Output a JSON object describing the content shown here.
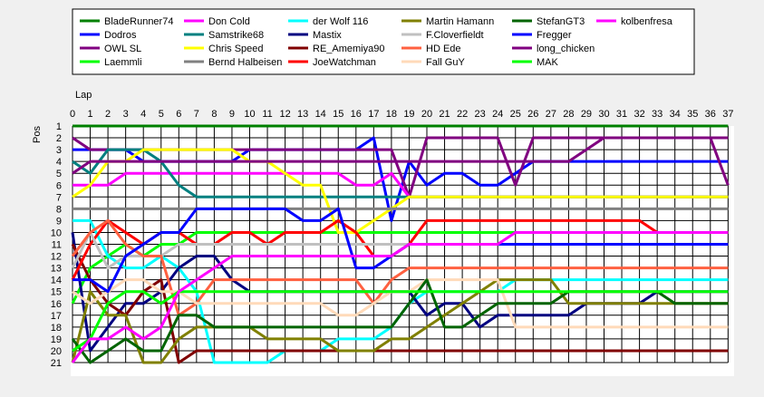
{
  "chart_data": {
    "type": "line",
    "xlabel": "Lap",
    "ylabel": "Pos",
    "x": [
      0,
      1,
      2,
      3,
      4,
      5,
      6,
      7,
      8,
      9,
      10,
      11,
      12,
      13,
      14,
      15,
      16,
      17,
      18,
      19,
      20,
      21,
      22,
      23,
      24,
      25,
      26,
      27,
      28,
      29,
      30,
      31,
      32,
      33,
      34,
      35,
      36,
      37
    ],
    "xlim": [
      0,
      37
    ],
    "ylim": [
      1,
      21
    ],
    "y_inverted": true,
    "yticks": [
      1,
      2,
      3,
      4,
      5,
      6,
      7,
      8,
      9,
      10,
      11,
      12,
      13,
      14,
      15,
      16,
      17,
      18,
      19,
      20,
      21
    ],
    "grid": true,
    "legend_position": "top",
    "series": [
      {
        "name": "BladeRunner74",
        "color": "#008000",
        "values": [
          1,
          1,
          1,
          1,
          1,
          1,
          1,
          1,
          1,
          1,
          1,
          1,
          1,
          1,
          1,
          1,
          1,
          1,
          1,
          1,
          1,
          1,
          1,
          1,
          1,
          1,
          1,
          1,
          1,
          1,
          1,
          1,
          1,
          1,
          1,
          1,
          1,
          1
        ]
      },
      {
        "name": "Dodros",
        "color": "#0000ff",
        "values": [
          3,
          3,
          3,
          3,
          4,
          4,
          4,
          4,
          4,
          4,
          3,
          3,
          3,
          3,
          3,
          3,
          3,
          2,
          9,
          4,
          6,
          5,
          5,
          6,
          6,
          5,
          4,
          4,
          4,
          4,
          4,
          4,
          4,
          4,
          4,
          4,
          4,
          4
        ]
      },
      {
        "name": "OWL SL",
        "color": "#800080",
        "values": [
          2,
          3,
          3,
          3,
          3,
          3,
          3,
          3,
          3,
          3,
          3,
          3,
          3,
          3,
          3,
          3,
          3,
          3,
          3,
          7,
          2,
          2,
          2,
          2,
          2,
          6,
          2,
          2,
          2,
          2,
          2,
          2,
          2,
          2,
          2,
          2,
          2,
          6
        ]
      },
      {
        "name": "Laemmli",
        "color": "#00ff00",
        "values": [
          16,
          13,
          12,
          11,
          12,
          11,
          11,
          10,
          10,
          10,
          10,
          10,
          10,
          10,
          10,
          10,
          10,
          10,
          10,
          10,
          10,
          10,
          10,
          10,
          10,
          10,
          10,
          10,
          10,
          10,
          10,
          10,
          10,
          10,
          10,
          10,
          10,
          10
        ]
      },
      {
        "name": "Don Cold",
        "color": "#ff00ff",
        "values": [
          6,
          6,
          6,
          5,
          5,
          5,
          5,
          5,
          5,
          5,
          5,
          5,
          5,
          5,
          5,
          5,
          6,
          6,
          5,
          7,
          7,
          7,
          7,
          7,
          7,
          7,
          7,
          7,
          7,
          7,
          7,
          7,
          7,
          7,
          7,
          7,
          7,
          7
        ]
      },
      {
        "name": "Samstrike68",
        "color": "#008080",
        "values": [
          4,
          5,
          3,
          3,
          3,
          4,
          6,
          7,
          7,
          7,
          7,
          7,
          7,
          7,
          7,
          7,
          7,
          7,
          7,
          7,
          7,
          7,
          7,
          7,
          7,
          7,
          7,
          7,
          7,
          7,
          7,
          7,
          7,
          7,
          7,
          7,
          7,
          7
        ]
      },
      {
        "name": "Chris Speed",
        "color": "#ffff00",
        "values": [
          7,
          6,
          4,
          4,
          3,
          3,
          3,
          3,
          3,
          3,
          4,
          4,
          5,
          6,
          6,
          10,
          10,
          9,
          8,
          7,
          7,
          7,
          7,
          7,
          7,
          7,
          7,
          7,
          7,
          7,
          7,
          7,
          7,
          7,
          7,
          7,
          7,
          7
        ]
      },
      {
        "name": "Bernd Halbeisen",
        "color": "#808080",
        "values": [
          8,
          8,
          8,
          8,
          8,
          8,
          8,
          8,
          8,
          8,
          8,
          8,
          8,
          8,
          8,
          8,
          8,
          8,
          8,
          8,
          8,
          8,
          8,
          8,
          8,
          8,
          8,
          8,
          8,
          8,
          8,
          8,
          8,
          8,
          8,
          8,
          8,
          8
        ]
      },
      {
        "name": "der Wolf 116",
        "color": "#00ffff",
        "values": [
          9,
          9,
          12,
          13,
          13,
          12,
          13,
          15,
          21,
          21,
          21,
          21,
          20,
          20,
          20,
          19,
          19,
          19,
          18,
          16,
          15,
          15,
          15,
          15,
          15,
          14,
          14,
          14,
          14,
          14,
          14,
          14,
          14,
          14,
          14,
          14,
          14,
          14
        ]
      },
      {
        "name": "Mastix",
        "color": "#000080",
        "values": [
          10,
          20,
          18,
          16,
          16,
          15,
          13,
          12,
          12,
          14,
          15,
          15,
          15,
          15,
          15,
          15,
          15,
          15,
          15,
          15,
          17,
          16,
          16,
          18,
          17,
          17,
          17,
          17,
          17,
          16,
          16,
          16,
          16,
          15,
          15,
          15,
          15,
          15
        ]
      },
      {
        "name": "RE_Amemiya90",
        "color": "#800000",
        "values": [
          11,
          14,
          16,
          17,
          15,
          14,
          21,
          20,
          20,
          20,
          20,
          20,
          20,
          20,
          20,
          20,
          20,
          20,
          20,
          20,
          20,
          20,
          20,
          20,
          20,
          20,
          20,
          20,
          20,
          20,
          20,
          20,
          20,
          20,
          20,
          20,
          20,
          20
        ]
      },
      {
        "name": "JoeWatchman",
        "color": "#ff0000",
        "values": [
          14,
          11,
          9,
          10,
          11,
          10,
          10,
          11,
          11,
          10,
          10,
          11,
          10,
          10,
          10,
          9,
          10,
          12,
          12,
          11,
          9,
          9,
          9,
          9,
          9,
          9,
          9,
          9,
          9,
          9,
          9,
          9,
          9,
          10,
          10,
          10,
          10,
          10
        ]
      },
      {
        "name": "Martin Hamann",
        "color": "#808000",
        "values": [
          21,
          15,
          17,
          17,
          21,
          21,
          19,
          18,
          18,
          18,
          18,
          19,
          19,
          19,
          19,
          20,
          20,
          20,
          19,
          19,
          18,
          17,
          16,
          15,
          14,
          14,
          14,
          14,
          16,
          16,
          16,
          16,
          16,
          16,
          16,
          16,
          16,
          16
        ]
      },
      {
        "name": "F.Cloverfieldt",
        "color": "#c0c0c0",
        "values": [
          13,
          10,
          13,
          12,
          12,
          12,
          11,
          11,
          11,
          11,
          11,
          11,
          11,
          11,
          11,
          11,
          11,
          11,
          11,
          11,
          11,
          11,
          11,
          11,
          11,
          11,
          11,
          11,
          11,
          11,
          11,
          11,
          11,
          11,
          11,
          11,
          11,
          11
        ]
      },
      {
        "name": "HD Ede",
        "color": "#ff6040",
        "values": [
          12,
          10,
          9,
          11,
          12,
          12,
          17,
          16,
          14,
          14,
          14,
          14,
          14,
          14,
          14,
          14,
          14,
          16,
          14,
          13,
          13,
          13,
          13,
          13,
          13,
          13,
          13,
          13,
          13,
          13,
          13,
          13,
          13,
          13,
          13,
          13,
          13,
          13
        ]
      },
      {
        "name": "Fall GuY",
        "color": "#ffdab9",
        "values": [
          15,
          16,
          15,
          14,
          14,
          15,
          15,
          16,
          16,
          16,
          16,
          16,
          16,
          16,
          16,
          17,
          17,
          16,
          15,
          15,
          14,
          14,
          14,
          14,
          14,
          18,
          18,
          18,
          18,
          18,
          18,
          18,
          18,
          18,
          18,
          18,
          18,
          18
        ]
      },
      {
        "name": "StefanGT3",
        "color": "#006400",
        "values": [
          19,
          21,
          20,
          19,
          20,
          20,
          17,
          17,
          18,
          18,
          18,
          18,
          18,
          18,
          18,
          18,
          18,
          18,
          18,
          16,
          14,
          18,
          18,
          17,
          16,
          16,
          16,
          16,
          15,
          15,
          15,
          15,
          15,
          15,
          16,
          16,
          16,
          16
        ]
      },
      {
        "name": "Fregger",
        "color": "#0000ff",
        "values": [
          14,
          14,
          15,
          12,
          11,
          10,
          10,
          8,
          8,
          8,
          8,
          8,
          8,
          9,
          9,
          8,
          13,
          13,
          12,
          11,
          11,
          11,
          11,
          11,
          11,
          11,
          11,
          11,
          11,
          11,
          11,
          11,
          11,
          11,
          11,
          11,
          11,
          11
        ]
      },
      {
        "name": "long_chicken",
        "color": "#800080",
        "values": [
          5,
          4,
          4,
          4,
          4,
          4,
          4,
          4,
          4,
          4,
          4,
          4,
          4,
          4,
          4,
          4,
          4,
          4,
          4,
          4,
          4,
          4,
          4,
          4,
          4,
          4,
          4,
          4,
          4,
          3,
          2,
          2,
          2,
          2,
          2,
          2,
          2,
          2
        ]
      },
      {
        "name": "MAK",
        "color": "#00ff00",
        "values": [
          20,
          19,
          16,
          15,
          15,
          16,
          15,
          15,
          15,
          15,
          15,
          15,
          15,
          15,
          15,
          15,
          15,
          15,
          15,
          15,
          15,
          15,
          15,
          15,
          15,
          15,
          15,
          15,
          15,
          15,
          15,
          15,
          15,
          15,
          15,
          15,
          15,
          15
        ]
      },
      {
        "name": "kolbenfresa",
        "color": "#ff00ff",
        "values": [
          21,
          19,
          19,
          18,
          19,
          18,
          15,
          14,
          13,
          12,
          12,
          12,
          12,
          12,
          12,
          12,
          12,
          12,
          12,
          11,
          11,
          11,
          11,
          11,
          11,
          10,
          10,
          10,
          10,
          10,
          10,
          10,
          10,
          10,
          10,
          10,
          10,
          10
        ]
      }
    ]
  }
}
